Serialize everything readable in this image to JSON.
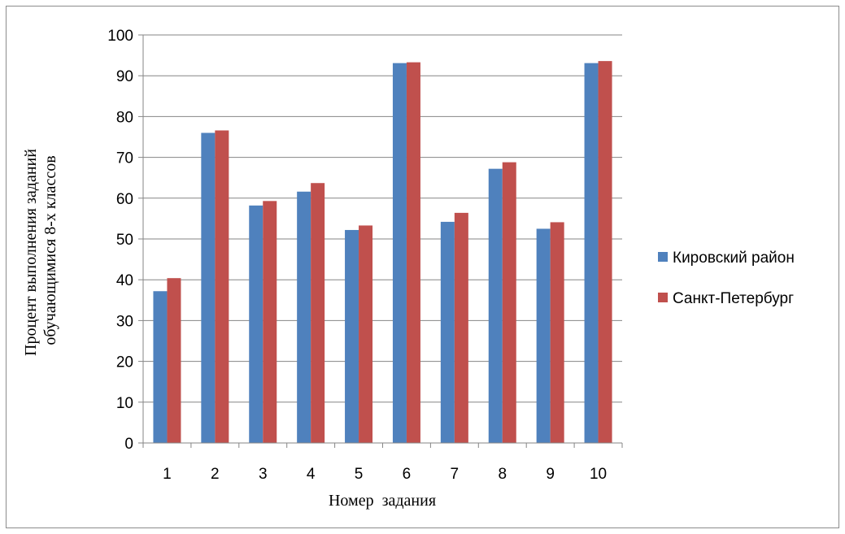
{
  "chart_data": {
    "type": "bar",
    "categories": [
      "1",
      "2",
      "3",
      "4",
      "5",
      "6",
      "7",
      "8",
      "9",
      "10"
    ],
    "series": [
      {
        "name": "Кировский район",
        "values": [
          37.2,
          76.0,
          58.2,
          61.6,
          52.2,
          93.1,
          54.2,
          67.2,
          52.5,
          93.1
        ],
        "color": "#4f81bd"
      },
      {
        "name": "Санкт-Петербург",
        "values": [
          40.4,
          76.6,
          59.3,
          63.7,
          53.3,
          93.3,
          56.4,
          68.8,
          54.1,
          93.6
        ],
        "color": "#c0504d"
      }
    ],
    "xlabel": "Номер  задания",
    "ylabel_line1": "Процент  выполнения  заданий",
    "ylabel_line2": "обучающимися 8-х классов",
    "ylim": [
      0,
      100
    ],
    "yticks": [
      0,
      10,
      20,
      30,
      40,
      50,
      60,
      70,
      80,
      90,
      100
    ],
    "grid": true,
    "legend_position": "right"
  }
}
